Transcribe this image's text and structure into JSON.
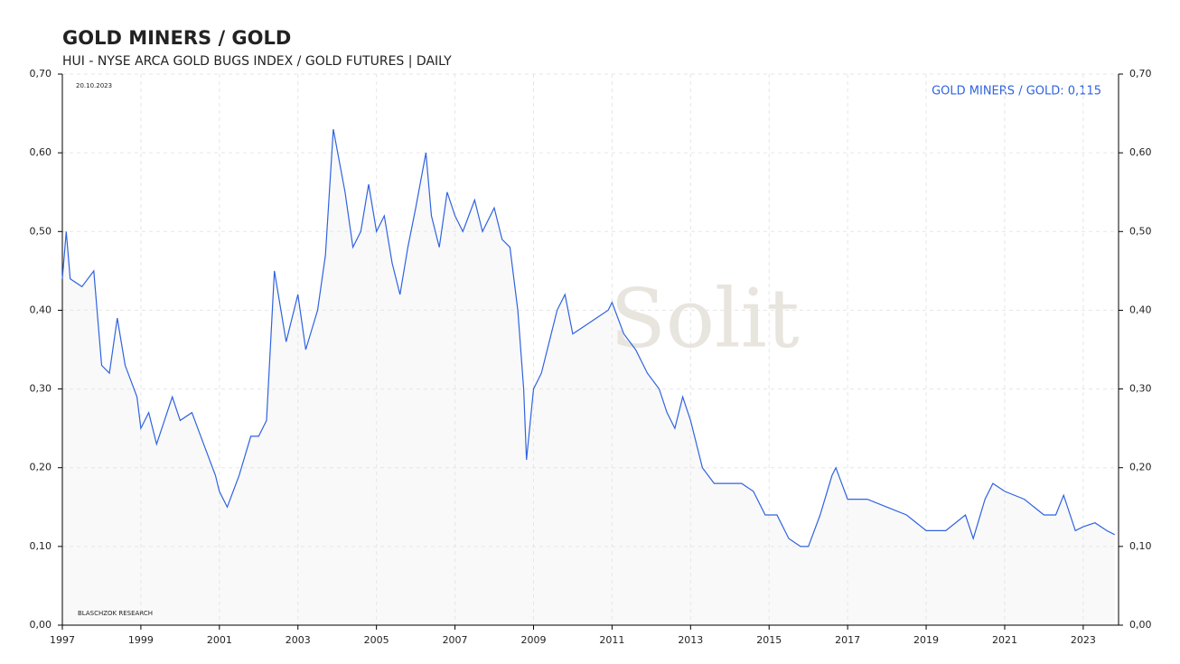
{
  "chart_data": {
    "type": "line",
    "title": "GOLD MINERS / GOLD",
    "subtitle": "HUI - NYSE ARCA GOLD BUGS INDEX / GOLD FUTURES | DAILY",
    "date_label": "20.10.2023",
    "source": "BLASCHZOK  RESEARCH",
    "watermark": "Solit",
    "legend_label": "GOLD MINERS / GOLD: 0,115",
    "grid": true,
    "x": [
      1997.0,
      1997.1,
      1997.2,
      1997.5,
      1997.8,
      1998.0,
      1998.2,
      1998.4,
      1998.6,
      1998.9,
      1999.0,
      1999.2,
      1999.4,
      1999.6,
      1999.8,
      2000.0,
      2000.3,
      2000.6,
      2000.9,
      2001.0,
      2001.2,
      2001.5,
      2001.8,
      2002.0,
      2002.2,
      2002.4,
      2002.7,
      2003.0,
      2003.2,
      2003.5,
      2003.7,
      2003.9,
      2004.2,
      2004.4,
      2004.6,
      2004.8,
      2005.0,
      2005.2,
      2005.4,
      2005.6,
      2005.8,
      2006.0,
      2006.26,
      2006.4,
      2006.6,
      2006.8,
      2007.0,
      2007.2,
      2007.5,
      2007.7,
      2008.0,
      2008.2,
      2008.4,
      2008.6,
      2008.75,
      2008.82,
      2009.0,
      2009.2,
      2009.4,
      2009.6,
      2009.8,
      2010.0,
      2010.3,
      2010.6,
      2010.9,
      2011.0,
      2011.3,
      2011.6,
      2011.9,
      2012.2,
      2012.4,
      2012.6,
      2012.8,
      2013.0,
      2013.3,
      2013.6,
      2014.0,
      2014.3,
      2014.6,
      2014.9,
      2015.2,
      2015.5,
      2015.8,
      2016.0,
      2016.3,
      2016.6,
      2016.7,
      2017.0,
      2017.5,
      2018.0,
      2018.5,
      2019.0,
      2019.5,
      2020.0,
      2020.2,
      2020.5,
      2020.7,
      2021.0,
      2021.5,
      2022.0,
      2022.3,
      2022.5,
      2022.8,
      2023.0,
      2023.3,
      2023.6,
      2023.8
    ],
    "series": [
      {
        "name": "GOLD MINERS / GOLD",
        "color": "#2f63e0",
        "values": [
          0.44,
          0.5,
          0.44,
          0.43,
          0.45,
          0.33,
          0.32,
          0.39,
          0.33,
          0.29,
          0.25,
          0.27,
          0.23,
          0.26,
          0.29,
          0.26,
          0.27,
          0.23,
          0.19,
          0.17,
          0.15,
          0.19,
          0.24,
          0.24,
          0.26,
          0.45,
          0.36,
          0.42,
          0.35,
          0.4,
          0.47,
          0.63,
          0.55,
          0.48,
          0.5,
          0.56,
          0.5,
          0.52,
          0.46,
          0.42,
          0.48,
          0.53,
          0.6,
          0.52,
          0.48,
          0.55,
          0.52,
          0.5,
          0.54,
          0.5,
          0.53,
          0.49,
          0.48,
          0.4,
          0.3,
          0.21,
          0.3,
          0.32,
          0.36,
          0.4,
          0.42,
          0.37,
          0.38,
          0.39,
          0.4,
          0.41,
          0.37,
          0.35,
          0.32,
          0.3,
          0.27,
          0.25,
          0.29,
          0.26,
          0.2,
          0.18,
          0.18,
          0.18,
          0.17,
          0.14,
          0.14,
          0.11,
          0.1,
          0.1,
          0.14,
          0.19,
          0.2,
          0.16,
          0.16,
          0.15,
          0.14,
          0.12,
          0.12,
          0.14,
          0.11,
          0.16,
          0.18,
          0.17,
          0.16,
          0.14,
          0.14,
          0.165,
          0.12,
          0.125,
          0.13,
          0.12,
          0.115
        ]
      }
    ],
    "xlim": [
      1997,
      2023.9
    ],
    "xticks": [
      1997,
      1999,
      2001,
      2003,
      2005,
      2007,
      2009,
      2011,
      2013,
      2015,
      2017,
      2019,
      2021,
      2023
    ],
    "ylim": [
      0,
      0.7
    ],
    "yticks": [
      {
        "value": 0,
        "label": "0,00"
      },
      {
        "value": 0.1,
        "label": "0,10"
      },
      {
        "value": 0.2,
        "label": "0,20"
      },
      {
        "value": 0.3,
        "label": "0,30"
      },
      {
        "value": 0.4,
        "label": "0,40"
      },
      {
        "value": 0.5,
        "label": "0,50"
      },
      {
        "value": 0.6,
        "label": "0,60"
      },
      {
        "value": 0.7,
        "label": "0,70"
      }
    ]
  }
}
